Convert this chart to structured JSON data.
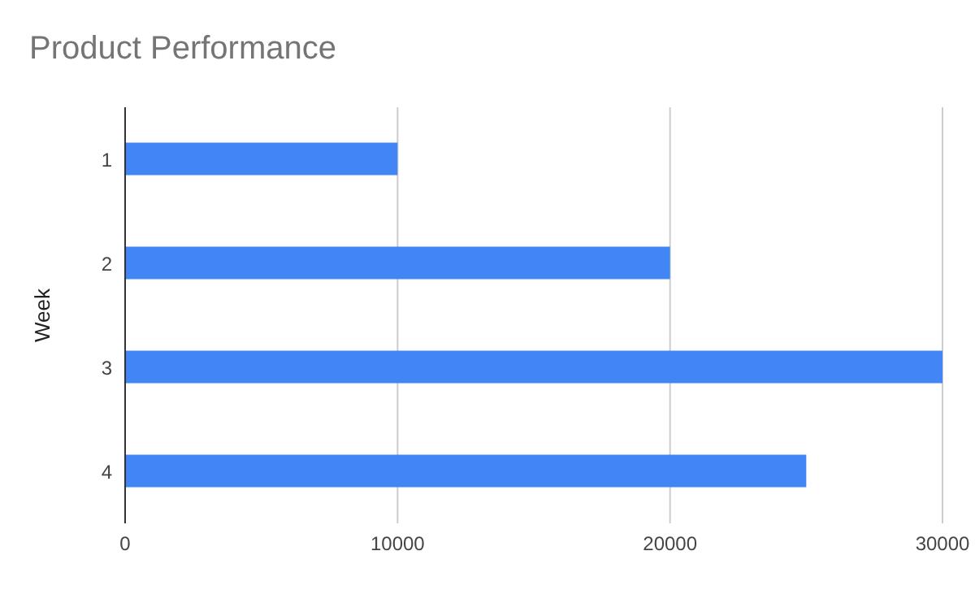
{
  "chart_data": {
    "type": "bar",
    "orientation": "horizontal",
    "title": "Product Performance",
    "ylabel": "Week",
    "categories": [
      "1",
      "2",
      "3",
      "4"
    ],
    "values": [
      10000,
      20000,
      30000,
      25000
    ],
    "color": "#4285f4",
    "xlim": [
      0,
      30000
    ],
    "xticks": [
      0,
      10000,
      20000,
      30000
    ],
    "grid": "x"
  }
}
